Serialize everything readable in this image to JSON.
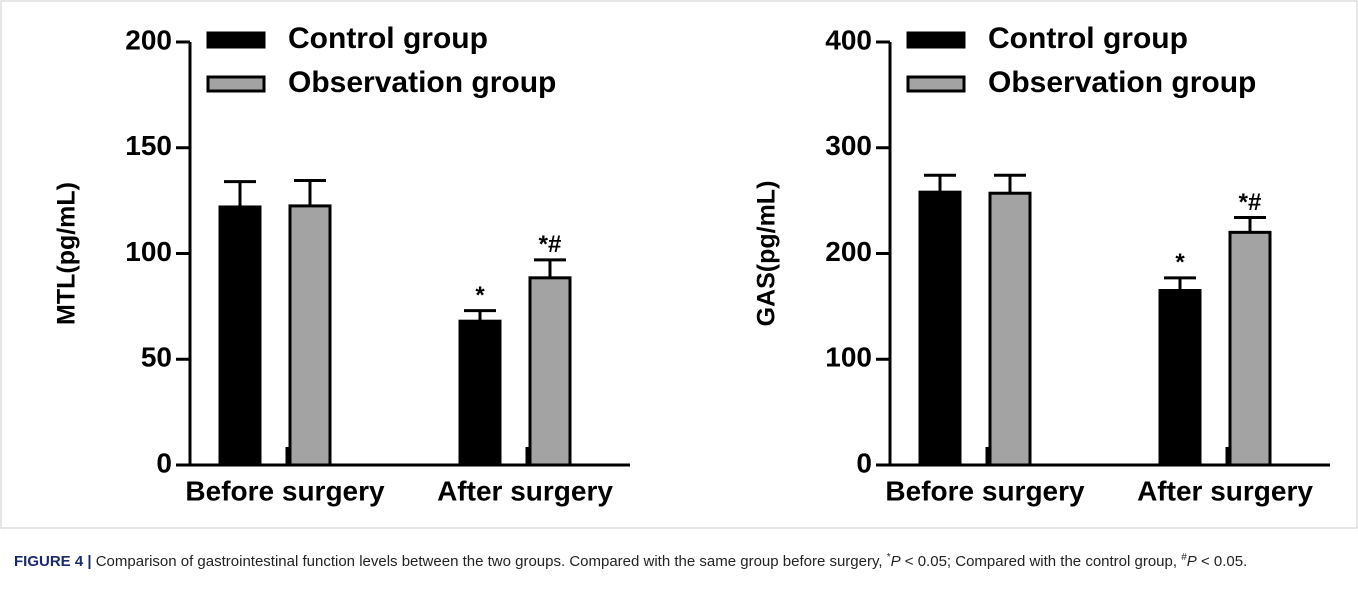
{
  "chart_data": [
    {
      "type": "bar",
      "ylabel": "MTL(pg/mL)",
      "categories": [
        "Before surgery",
        "After surgery"
      ],
      "ylim": [
        0,
        200
      ],
      "yticks": [
        0,
        50,
        100,
        150,
        200
      ],
      "series": [
        {
          "name": "Control group",
          "color": "#000000",
          "values": [
            122,
            68
          ],
          "errors": [
            12,
            5
          ],
          "annotations": [
            null,
            "*"
          ]
        },
        {
          "name": "Observation group",
          "color": "#a3a3a3",
          "values": [
            122.5,
            88.5
          ],
          "errors": [
            12,
            8.5
          ],
          "annotations": [
            null,
            "*#"
          ]
        }
      ]
    },
    {
      "type": "bar",
      "ylabel": "GAS(pg/mL)",
      "categories": [
        "Before surgery",
        "After surgery"
      ],
      "ylim": [
        0,
        400
      ],
      "yticks": [
        0,
        100,
        200,
        300,
        400
      ],
      "series": [
        {
          "name": "Control group",
          "color": "#000000",
          "values": [
            258,
            165
          ],
          "errors": [
            16,
            12
          ],
          "annotations": [
            null,
            "*"
          ]
        },
        {
          "name": "Observation group",
          "color": "#a3a3a3",
          "values": [
            257,
            220
          ],
          "errors": [
            17,
            14
          ],
          "annotations": [
            null,
            "*#"
          ]
        }
      ]
    }
  ],
  "caption": {
    "label": "FIGURE 4 |",
    "parts": [
      "Comparison of gastrointestinal function levels between the two groups. Compared with the same group before surgery, ",
      "*",
      "P",
      " < 0.05; Compared with the control group, ",
      "#",
      "P",
      " < 0.05."
    ]
  }
}
